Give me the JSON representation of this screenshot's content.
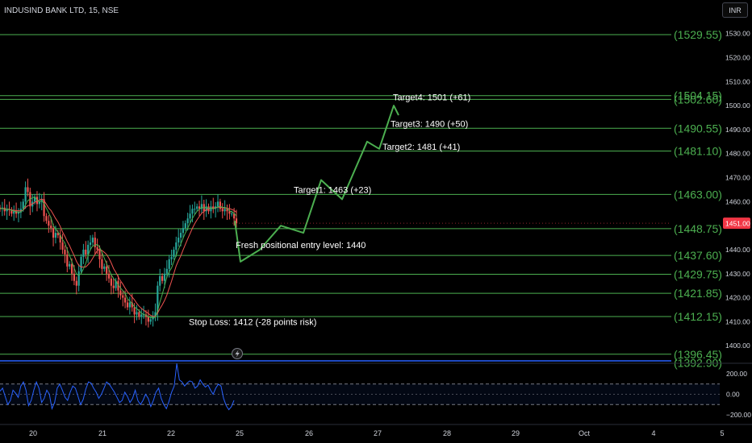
{
  "header": {
    "title": "INDUSIND BANK LTD, 15, NSE",
    "currency": "INR"
  },
  "colors": {
    "level_line": "#4caf50",
    "level_label": "#4caf50",
    "path": "#4caf50",
    "up_candle": "#26a69a",
    "down_candle": "#ef5350",
    "ma_red": "#ef5350",
    "ma_green": "#4caf50",
    "cci": "#2962ff",
    "price_badge": "#f23645",
    "blue_line": "#2962ff",
    "annotation_text": "#ffffff",
    "axis_text": "#d1d4dc"
  },
  "chart_data": [
    {
      "type": "candlestick",
      "title": "INDUSIND BANK LTD, 15, NSE",
      "ylim": [
        1396,
        1534
      ],
      "y_ticks": [
        1530,
        1520,
        1510,
        1500,
        1490,
        1480,
        1470,
        1460,
        1450,
        1440,
        1430,
        1420,
        1410,
        1400
      ],
      "y_tick_labels": [
        "1530.00",
        "1520.00",
        "1510.00",
        "1500.00",
        "1490.00",
        "1480.00",
        "1470.00",
        "1460.00",
        "1450.00",
        "1440.00",
        "1430.00",
        "1420.00",
        "1410.00",
        "1400.00"
      ],
      "x_tick_labels": [
        "20",
        "21",
        "22",
        "25",
        "26",
        "27",
        "28",
        "29",
        "Oct",
        "4",
        "5"
      ],
      "current_price": 1451.0,
      "current_price_label": "1451.00",
      "levels": [
        {
          "value": 1529.55,
          "label": "(1529.55)"
        },
        {
          "value": 1504.15,
          "label": "(1504.15)"
        },
        {
          "value": 1502.6,
          "label": "(1502.60)"
        },
        {
          "value": 1490.55,
          "label": "(1490.55)"
        },
        {
          "value": 1481.1,
          "label": "(1481.10)"
        },
        {
          "value": 1463.0,
          "label": "(1463.00)"
        },
        {
          "value": 1448.75,
          "label": "(1448.75)"
        },
        {
          "value": 1437.6,
          "label": "(1437.60)"
        },
        {
          "value": 1429.75,
          "label": "(1429.75)"
        },
        {
          "value": 1421.85,
          "label": "(1421.85)"
        },
        {
          "value": 1412.15,
          "label": "(1412.15)"
        },
        {
          "value": 1396.45,
          "label": "(1396.45)"
        },
        {
          "value": 1392.9,
          "label": "(1392.90)"
        }
      ],
      "annotations": [
        {
          "text": "Target4: 1501 (+61)",
          "price": 1503.5
        },
        {
          "text": "Target3: 1490 (+50)",
          "price": 1492.5
        },
        {
          "text": "Target2: 1481 (+41)",
          "price": 1483
        },
        {
          "text": "Target1: 1463 (+23)",
          "price": 1465
        },
        {
          "text": "Fresh positional entry level: 1440",
          "price": 1442
        },
        {
          "text": "Stop Loss: 1412 (-28 points risk)",
          "price": 1410
        }
      ],
      "projected_path": [
        1452,
        1435,
        1440,
        1450,
        1447,
        1469,
        1461,
        1485,
        1482,
        1500,
        1496
      ],
      "candles_close": [
        1457,
        1457.5,
        1456,
        1457,
        1456.5,
        1455,
        1456,
        1455,
        1455.5,
        1457,
        1460,
        1466,
        1464,
        1458,
        1460,
        1462,
        1459,
        1460,
        1461,
        1454,
        1452,
        1450,
        1449,
        1445,
        1447,
        1446,
        1443,
        1440,
        1438,
        1433,
        1434,
        1430,
        1427,
        1425,
        1431,
        1437,
        1440,
        1438,
        1442,
        1443,
        1445,
        1441,
        1440,
        1436,
        1432,
        1433,
        1430,
        1428,
        1425,
        1424,
        1427,
        1423,
        1421,
        1420,
        1418,
        1416,
        1418,
        1416,
        1413,
        1414,
        1412,
        1413,
        1413,
        1412,
        1410,
        1411,
        1412,
        1414,
        1425,
        1429,
        1427,
        1430,
        1432,
        1436,
        1437,
        1440,
        1443,
        1445,
        1447,
        1449,
        1451,
        1453,
        1455,
        1457,
        1457,
        1458,
        1457,
        1459,
        1456,
        1458,
        1456,
        1458,
        1457,
        1458,
        1460,
        1457,
        1456,
        1457,
        1456,
        1455,
        1455,
        1453,
        1451
      ]
    },
    {
      "type": "line",
      "indicator": "CCI",
      "ylim": [
        -235,
        245
      ],
      "y_ticks": [
        200,
        0,
        -200
      ],
      "y_tick_labels": [
        "200.00",
        "0.00",
        "−200.00"
      ],
      "bands": [
        100,
        -100
      ],
      "values": [
        30,
        60,
        -20,
        -100,
        -60,
        40,
        10,
        -30,
        80,
        120,
        40,
        -110,
        -60,
        40,
        120,
        60,
        -80,
        -40,
        40,
        0,
        -140,
        -80,
        60,
        100,
        40,
        -30,
        -60,
        20,
        80,
        60,
        -20,
        -100,
        -50,
        50,
        120,
        110,
        60,
        20,
        -40,
        0,
        60,
        120,
        100,
        60,
        20,
        -30,
        -80,
        -60,
        20,
        -20,
        -80,
        -40,
        40,
        -60,
        -100,
        -60,
        0,
        -40,
        -120,
        -60,
        20,
        60,
        -40,
        -100,
        -140,
        -70,
        20,
        80,
        300,
        140,
        120,
        80,
        110,
        130,
        120,
        60,
        80,
        140,
        100,
        70,
        90,
        40,
        0,
        60,
        100,
        80,
        -40,
        -110,
        -150,
        -120,
        -60
      ]
    }
  ]
}
